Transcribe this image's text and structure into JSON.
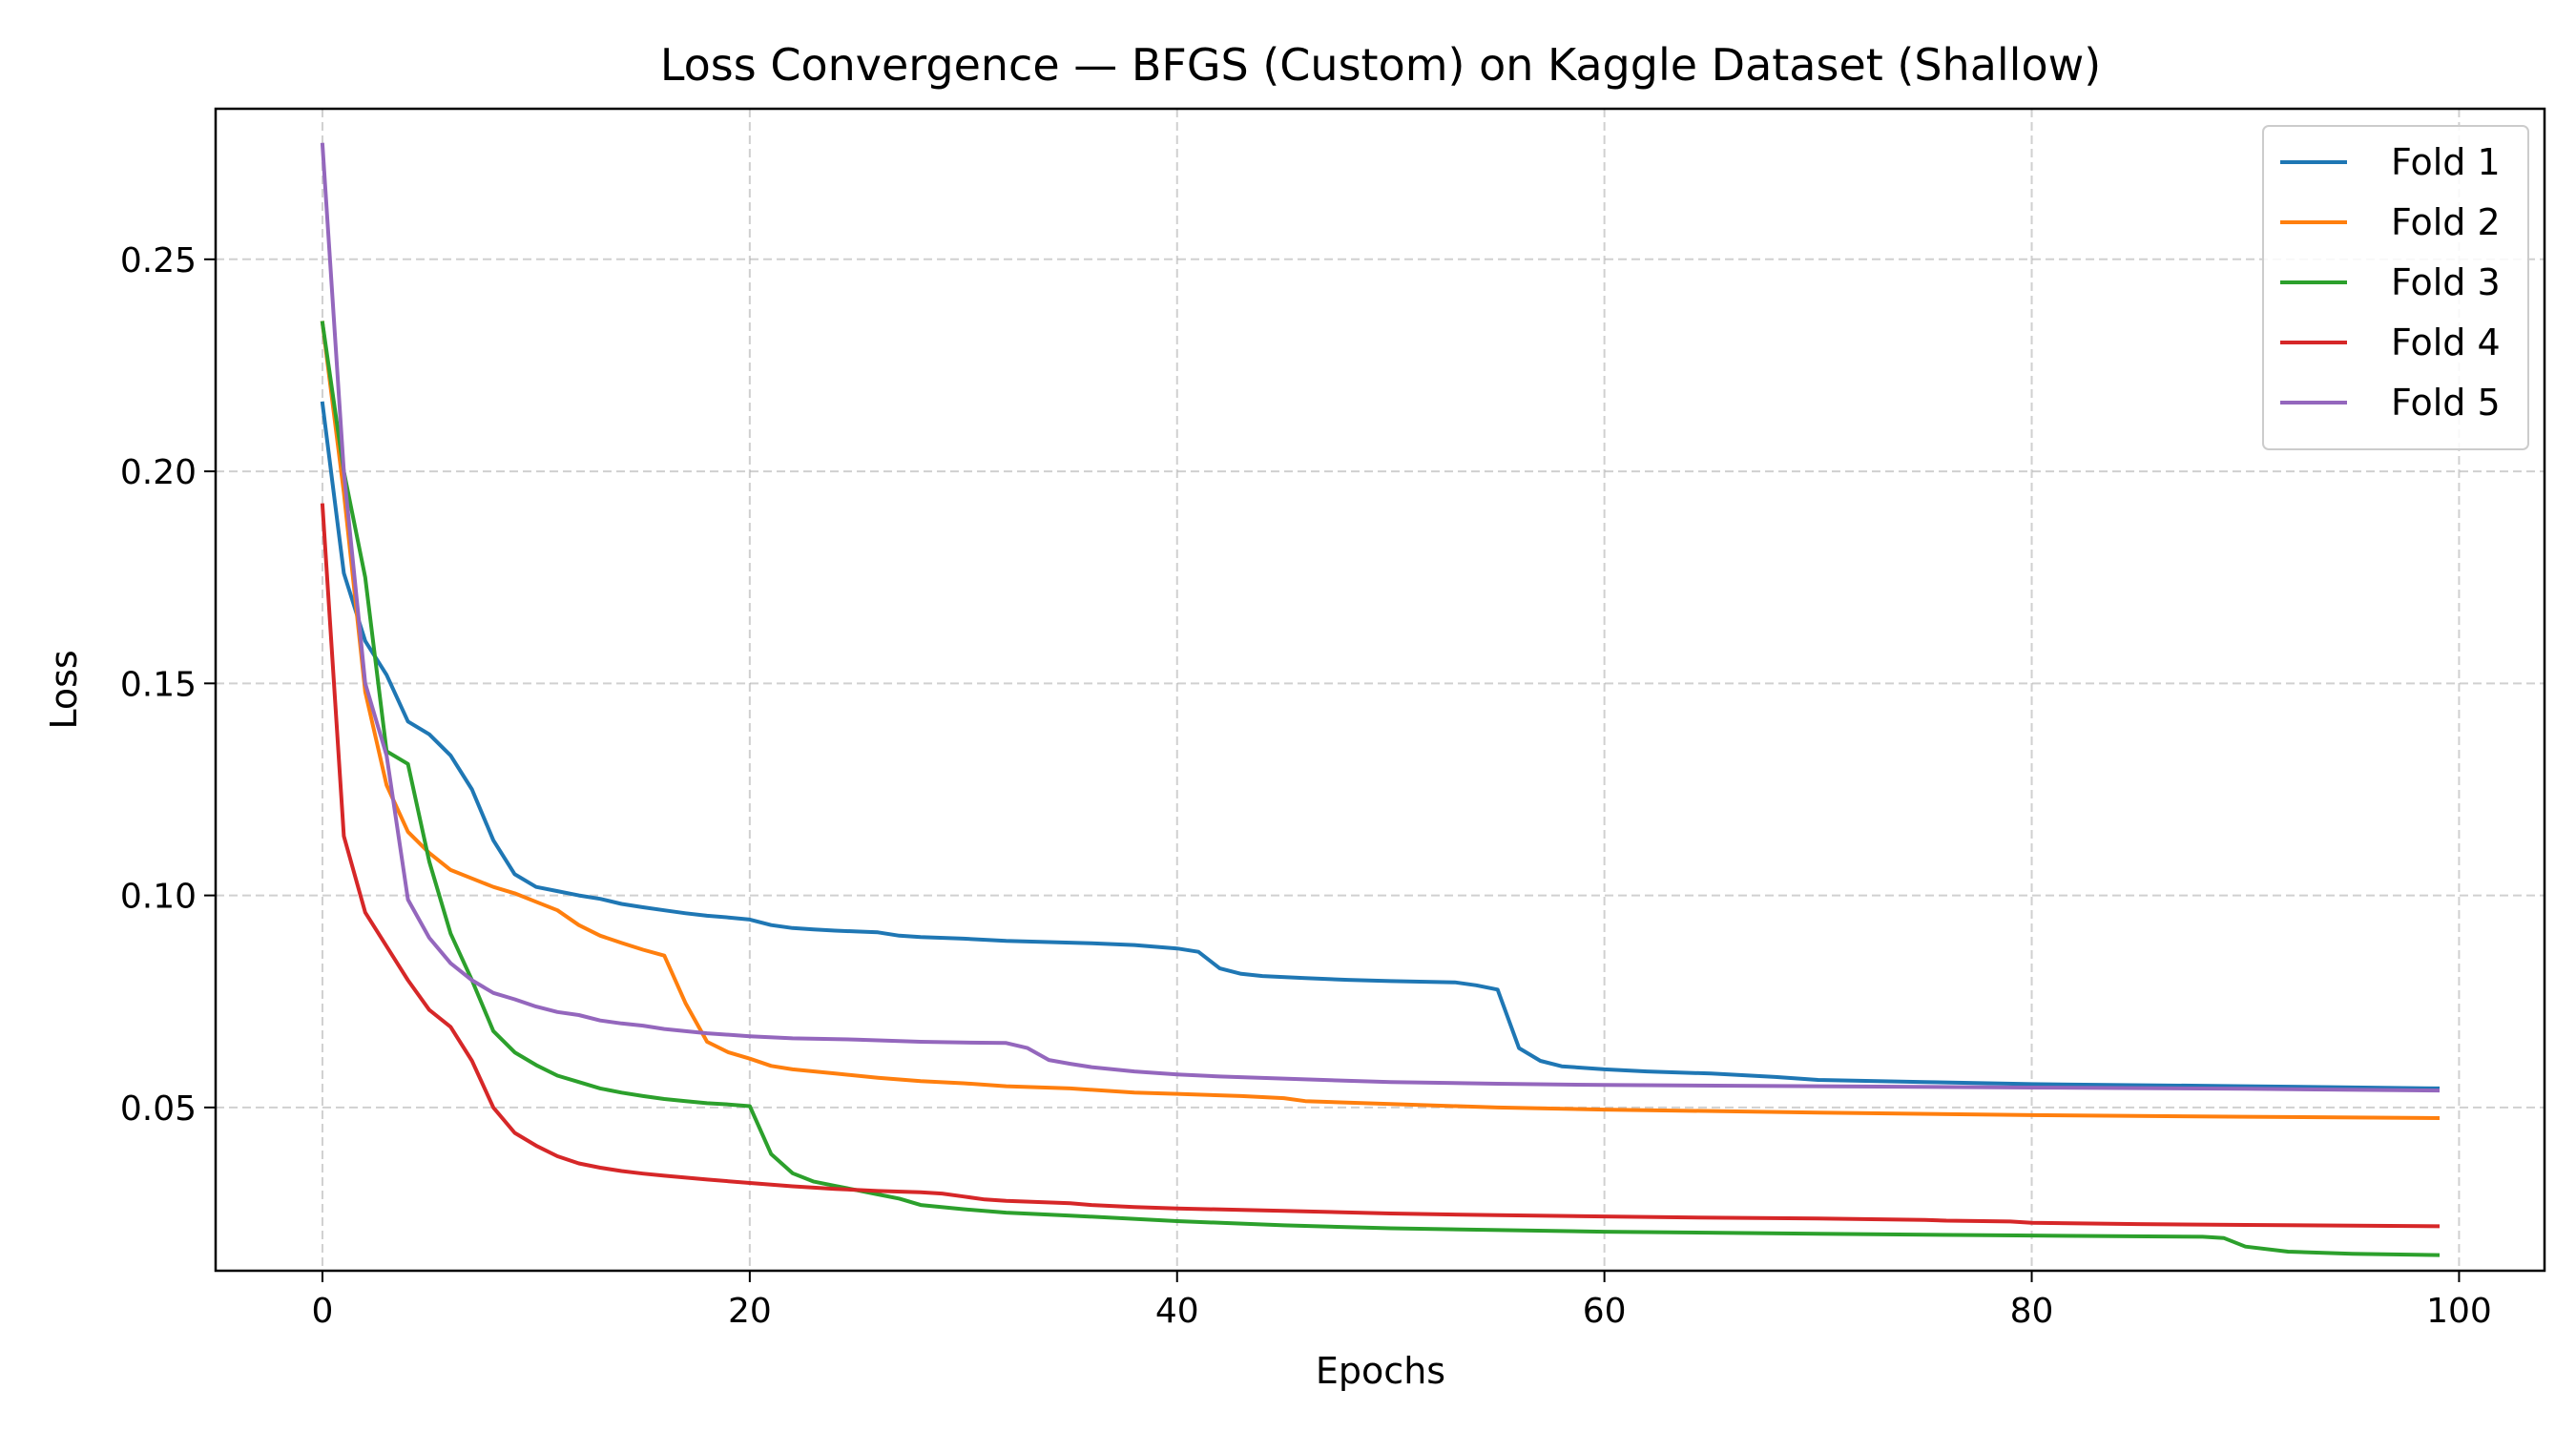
{
  "chart_data": {
    "type": "line",
    "title": "Loss Convergence — BFGS (Custom) on Kaggle Dataset (Shallow)",
    "xlabel": "Epochs",
    "ylabel": "Loss",
    "xlim": [
      -5,
      104
    ],
    "ylim": [
      0.0115,
      0.2855
    ],
    "xticks": [
      0,
      20,
      40,
      60,
      80,
      100
    ],
    "xtick_labels": [
      "0",
      "20",
      "40",
      "60",
      "80",
      "100"
    ],
    "yticks": [
      0.05,
      0.1,
      0.15,
      0.2,
      0.25
    ],
    "ytick_labels": [
      "0.05",
      "0.10",
      "0.15",
      "0.20",
      "0.25"
    ],
    "grid": true,
    "legend_position": "top-right",
    "series": [
      {
        "name": "Fold 1",
        "color": "#1f77b4",
        "points": [
          [
            0,
            0.216
          ],
          [
            1,
            0.176
          ],
          [
            2,
            0.16
          ],
          [
            3,
            0.152
          ],
          [
            4,
            0.141
          ],
          [
            5,
            0.138
          ],
          [
            6,
            0.133
          ],
          [
            7,
            0.125
          ],
          [
            8,
            0.113
          ],
          [
            9,
            0.105
          ],
          [
            10,
            0.102
          ],
          [
            11,
            0.101
          ],
          [
            12,
            0.1
          ],
          [
            13,
            0.0992
          ],
          [
            14,
            0.098
          ],
          [
            15,
            0.0972
          ],
          [
            16,
            0.0965
          ],
          [
            17,
            0.0958
          ],
          [
            18,
            0.0952
          ],
          [
            19,
            0.0948
          ],
          [
            20,
            0.0943
          ],
          [
            21,
            0.093
          ],
          [
            22,
            0.0923
          ],
          [
            23,
            0.092
          ],
          [
            24,
            0.0917
          ],
          [
            25,
            0.0915
          ],
          [
            26,
            0.0913
          ],
          [
            27,
            0.0905
          ],
          [
            28,
            0.0902
          ],
          [
            30,
            0.0898
          ],
          [
            32,
            0.0893
          ],
          [
            34,
            0.089
          ],
          [
            36,
            0.0887
          ],
          [
            38,
            0.0883
          ],
          [
            40,
            0.0875
          ],
          [
            41,
            0.0867
          ],
          [
            42,
            0.0828
          ],
          [
            43,
            0.0815
          ],
          [
            44,
            0.081
          ],
          [
            46,
            0.0805
          ],
          [
            48,
            0.0801
          ],
          [
            50,
            0.0798
          ],
          [
            53,
            0.0795
          ],
          [
            54,
            0.0788
          ],
          [
            55,
            0.0778
          ],
          [
            56,
            0.064
          ],
          [
            57,
            0.061
          ],
          [
            58,
            0.0597
          ],
          [
            60,
            0.059
          ],
          [
            62,
            0.0585
          ],
          [
            65,
            0.058
          ],
          [
            68,
            0.0572
          ],
          [
            70,
            0.0565
          ],
          [
            75,
            0.056
          ],
          [
            80,
            0.0555
          ],
          [
            90,
            0.055
          ],
          [
            99,
            0.0545
          ]
        ]
      },
      {
        "name": "Fold 2",
        "color": "#ff7f0e",
        "points": [
          [
            0,
            0.235
          ],
          [
            1,
            0.195
          ],
          [
            2,
            0.148
          ],
          [
            3,
            0.126
          ],
          [
            4,
            0.115
          ],
          [
            5,
            0.11
          ],
          [
            6,
            0.106
          ],
          [
            7,
            0.104
          ],
          [
            8,
            0.102
          ],
          [
            9,
            0.1005
          ],
          [
            10,
            0.0985
          ],
          [
            11,
            0.0965
          ],
          [
            12,
            0.093
          ],
          [
            13,
            0.0905
          ],
          [
            14,
            0.0888
          ],
          [
            15,
            0.0872
          ],
          [
            16,
            0.0858
          ],
          [
            17,
            0.0745
          ],
          [
            18,
            0.0655
          ],
          [
            19,
            0.063
          ],
          [
            20,
            0.0615
          ],
          [
            21,
            0.0598
          ],
          [
            22,
            0.059
          ],
          [
            24,
            0.058
          ],
          [
            26,
            0.057
          ],
          [
            28,
            0.0562
          ],
          [
            30,
            0.0557
          ],
          [
            32,
            0.055
          ],
          [
            35,
            0.0545
          ],
          [
            38,
            0.0535
          ],
          [
            40,
            0.0532
          ],
          [
            43,
            0.0527
          ],
          [
            45,
            0.0522
          ],
          [
            46,
            0.0515
          ],
          [
            50,
            0.0508
          ],
          [
            55,
            0.05
          ],
          [
            60,
            0.0495
          ],
          [
            70,
            0.0488
          ],
          [
            80,
            0.0482
          ],
          [
            90,
            0.0478
          ],
          [
            99,
            0.0475
          ]
        ]
      },
      {
        "name": "Fold 3",
        "color": "#2ca02c",
        "points": [
          [
            0,
            0.235
          ],
          [
            1,
            0.2
          ],
          [
            2,
            0.175
          ],
          [
            3,
            0.134
          ],
          [
            4,
            0.131
          ],
          [
            5,
            0.108
          ],
          [
            6,
            0.091
          ],
          [
            7,
            0.08
          ],
          [
            8,
            0.068
          ],
          [
            9,
            0.063
          ],
          [
            10,
            0.06
          ],
          [
            11,
            0.0575
          ],
          [
            12,
            0.056
          ],
          [
            13,
            0.0545
          ],
          [
            14,
            0.0535
          ],
          [
            15,
            0.0527
          ],
          [
            16,
            0.052
          ],
          [
            17,
            0.0515
          ],
          [
            18,
            0.051
          ],
          [
            19,
            0.0507
          ],
          [
            20,
            0.0503
          ],
          [
            21,
            0.039
          ],
          [
            22,
            0.0345
          ],
          [
            23,
            0.0325
          ],
          [
            24,
            0.0315
          ],
          [
            25,
            0.0305
          ],
          [
            26,
            0.0295
          ],
          [
            27,
            0.0285
          ],
          [
            28,
            0.027
          ],
          [
            30,
            0.026
          ],
          [
            32,
            0.0252
          ],
          [
            35,
            0.0245
          ],
          [
            40,
            0.0232
          ],
          [
            45,
            0.0222
          ],
          [
            50,
            0.0215
          ],
          [
            60,
            0.0207
          ],
          [
            70,
            0.0202
          ],
          [
            80,
            0.0198
          ],
          [
            88,
            0.0195
          ],
          [
            89,
            0.0192
          ],
          [
            90,
            0.0172
          ],
          [
            92,
            0.016
          ],
          [
            95,
            0.0155
          ],
          [
            99,
            0.0152
          ]
        ]
      },
      {
        "name": "Fold 4",
        "color": "#d62728",
        "points": [
          [
            0,
            0.192
          ],
          [
            1,
            0.114
          ],
          [
            2,
            0.096
          ],
          [
            3,
            0.088
          ],
          [
            4,
            0.08
          ],
          [
            5,
            0.073
          ],
          [
            6,
            0.069
          ],
          [
            7,
            0.061
          ],
          [
            8,
            0.05
          ],
          [
            9,
            0.044
          ],
          [
            10,
            0.041
          ],
          [
            11,
            0.0385
          ],
          [
            12,
            0.0368
          ],
          [
            13,
            0.0358
          ],
          [
            14,
            0.035
          ],
          [
            15,
            0.0344
          ],
          [
            16,
            0.0339
          ],
          [
            18,
            0.033
          ],
          [
            20,
            0.0322
          ],
          [
            22,
            0.0314
          ],
          [
            24,
            0.0308
          ],
          [
            26,
            0.0303
          ],
          [
            28,
            0.03
          ],
          [
            29,
            0.0297
          ],
          [
            30,
            0.029
          ],
          [
            31,
            0.0283
          ],
          [
            32,
            0.028
          ],
          [
            35,
            0.0274
          ],
          [
            36,
            0.027
          ],
          [
            38,
            0.0265
          ],
          [
            40,
            0.0262
          ],
          [
            45,
            0.0256
          ],
          [
            50,
            0.025
          ],
          [
            55,
            0.0246
          ],
          [
            60,
            0.0243
          ],
          [
            65,
            0.024
          ],
          [
            70,
            0.0238
          ],
          [
            75,
            0.0235
          ],
          [
            76,
            0.0233
          ],
          [
            79,
            0.0231
          ],
          [
            80,
            0.0228
          ],
          [
            85,
            0.0225
          ],
          [
            90,
            0.0223
          ],
          [
            99,
            0.022
          ]
        ]
      },
      {
        "name": "Fold 5",
        "color": "#9467bd",
        "points": [
          [
            0,
            0.277
          ],
          [
            1,
            0.2
          ],
          [
            2,
            0.15
          ],
          [
            3,
            0.133
          ],
          [
            4,
            0.099
          ],
          [
            5,
            0.09
          ],
          [
            6,
            0.084
          ],
          [
            7,
            0.08
          ],
          [
            8,
            0.077
          ],
          [
            9,
            0.0755
          ],
          [
            10,
            0.0738
          ],
          [
            11,
            0.0725
          ],
          [
            12,
            0.0718
          ],
          [
            13,
            0.0705
          ],
          [
            14,
            0.0698
          ],
          [
            15,
            0.0693
          ],
          [
            16,
            0.0685
          ],
          [
            18,
            0.0675
          ],
          [
            20,
            0.0668
          ],
          [
            22,
            0.0663
          ],
          [
            25,
            0.066
          ],
          [
            28,
            0.0655
          ],
          [
            30,
            0.0653
          ],
          [
            32,
            0.0652
          ],
          [
            33,
            0.064
          ],
          [
            34,
            0.0612
          ],
          [
            35,
            0.0603
          ],
          [
            36,
            0.0595
          ],
          [
            38,
            0.0585
          ],
          [
            40,
            0.0578
          ],
          [
            42,
            0.0573
          ],
          [
            45,
            0.0568
          ],
          [
            48,
            0.0563
          ],
          [
            50,
            0.056
          ],
          [
            55,
            0.0556
          ],
          [
            60,
            0.0553
          ],
          [
            70,
            0.055
          ],
          [
            80,
            0.0547
          ],
          [
            90,
            0.0544
          ],
          [
            99,
            0.054
          ]
        ]
      }
    ]
  }
}
